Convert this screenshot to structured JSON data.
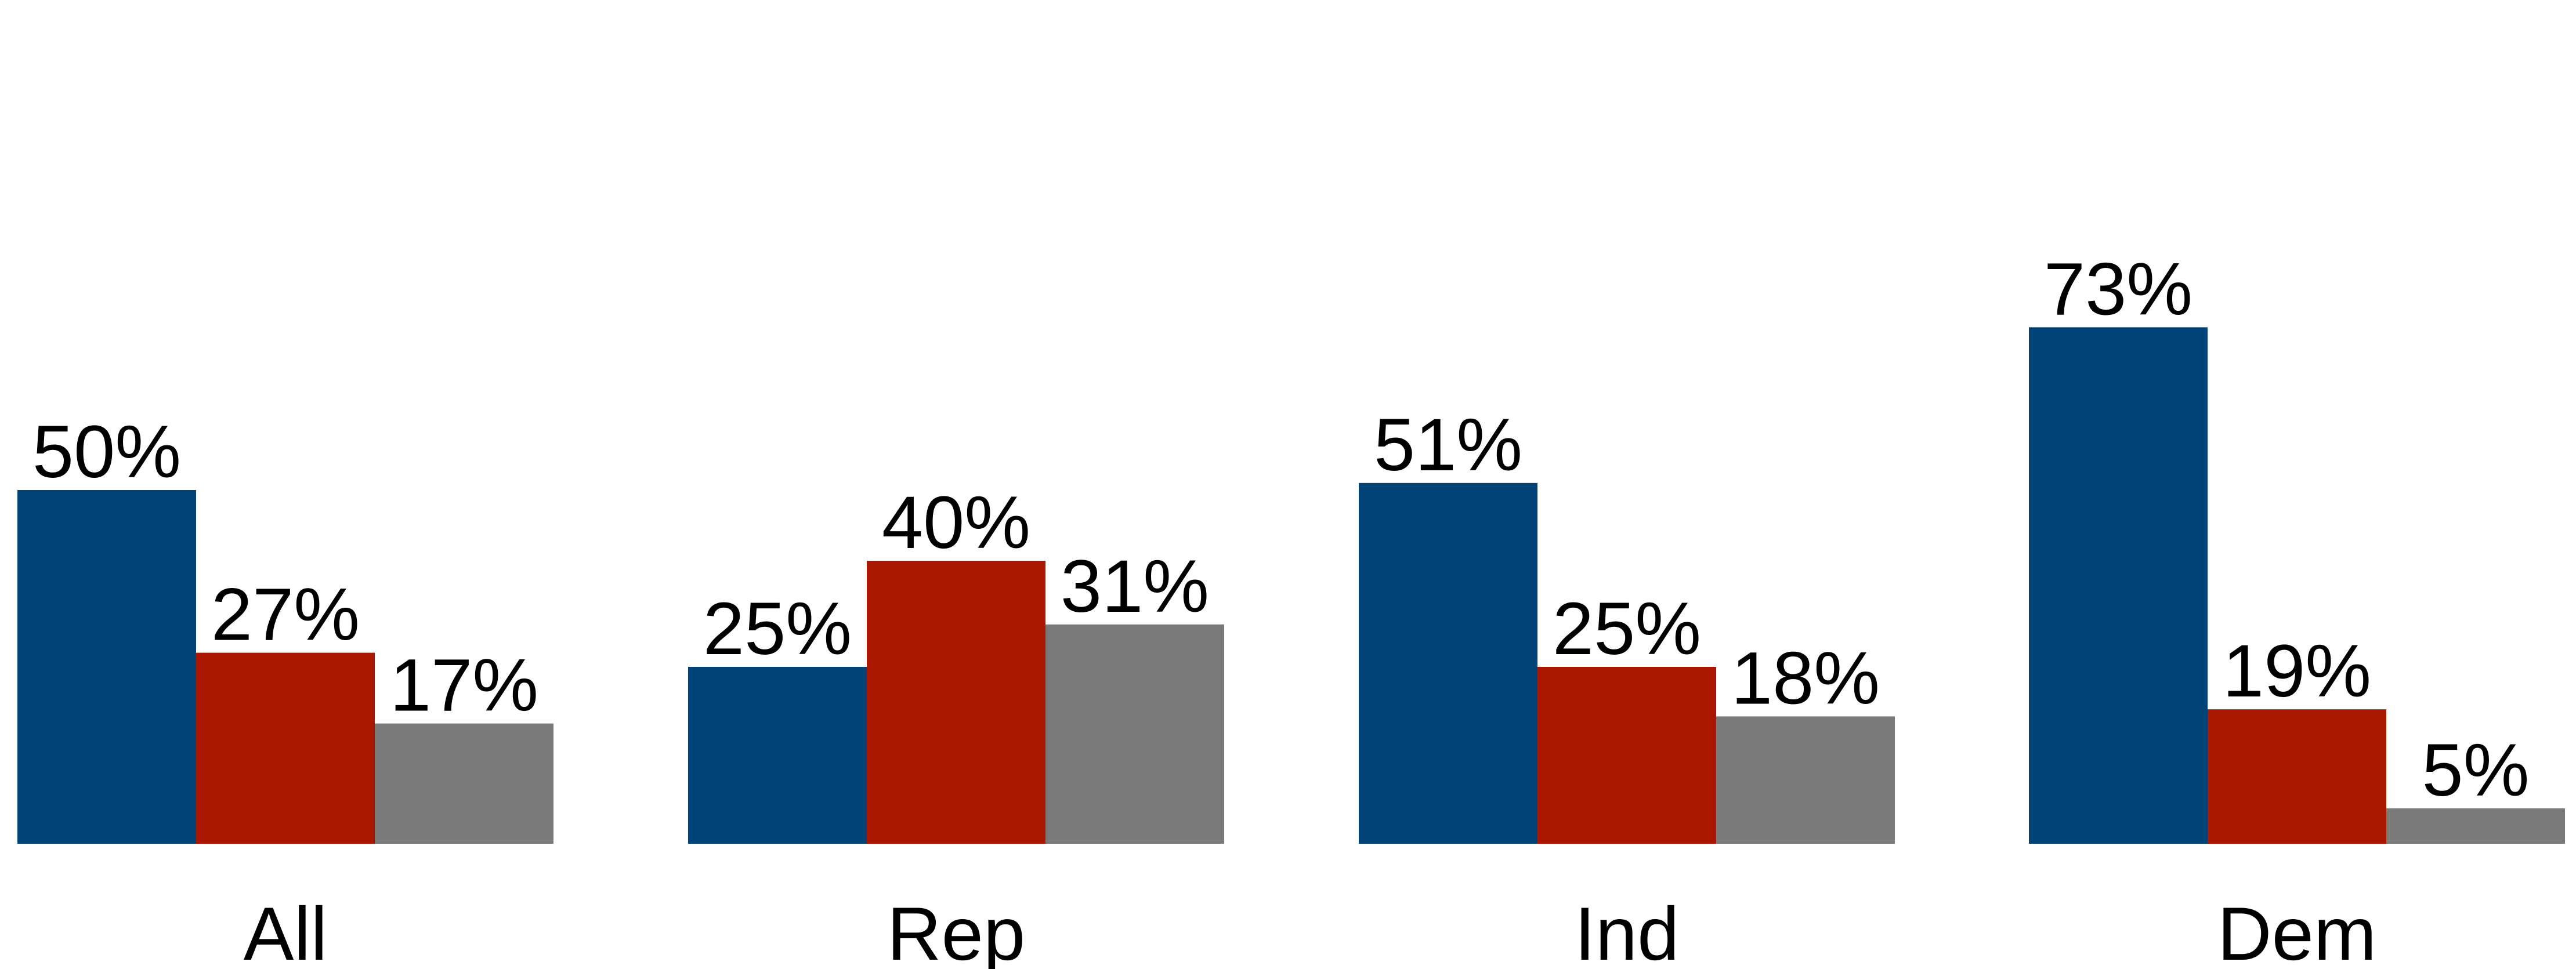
{
  "chart_data": {
    "type": "bar",
    "categories": [
      "All",
      "Rep",
      "Ind",
      "Dem"
    ],
    "series": [
      {
        "values": [
          50,
          25,
          51,
          73
        ],
        "color": "#024477",
        "labels": [
          "50%",
          "25%",
          "51%",
          "73%"
        ]
      },
      {
        "values": [
          27,
          40,
          25,
          19
        ],
        "color": "#AA1700",
        "labels": [
          "27%",
          "40%",
          "25%",
          "19%"
        ]
      },
      {
        "values": [
          17,
          31,
          18,
          5
        ],
        "color": "#7A7A7A",
        "labels": [
          "17%",
          "31%",
          "18%",
          "5%"
        ]
      }
    ],
    "ylim": [
      0,
      80
    ],
    "grid": false,
    "legend": "none"
  }
}
